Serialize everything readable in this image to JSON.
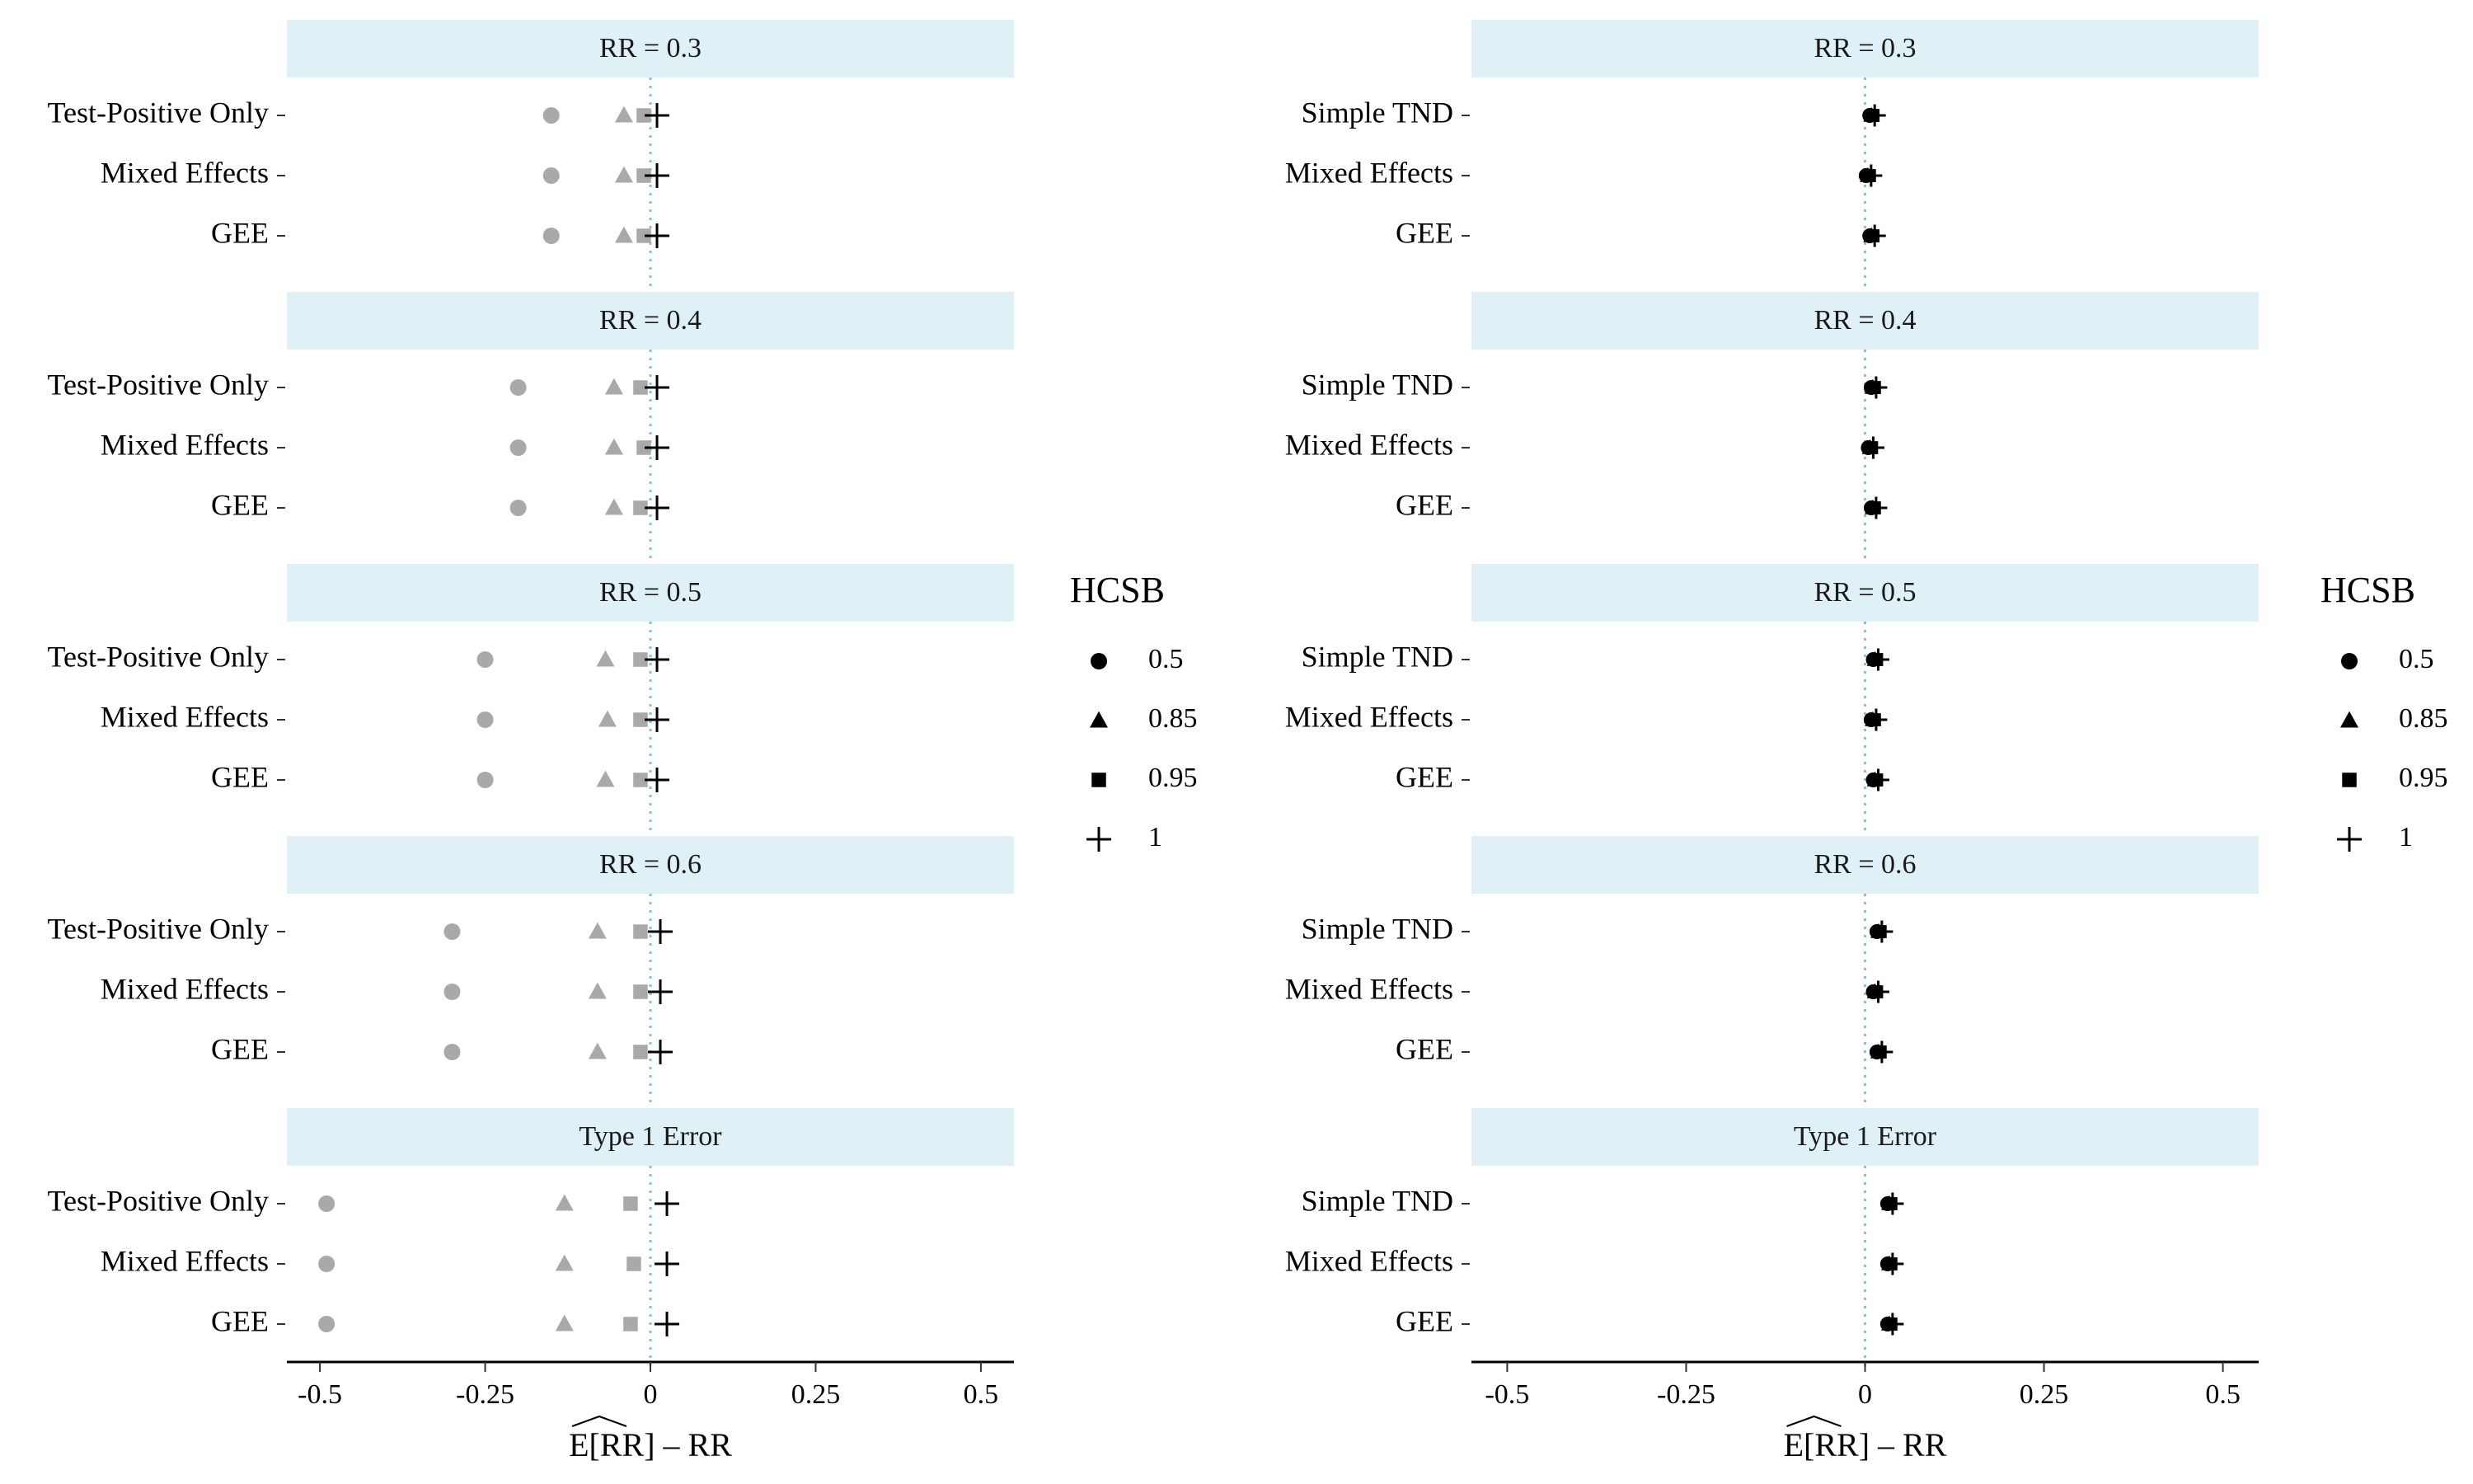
{
  "chart_data": [
    {
      "type": "scatter",
      "panel": "left",
      "facets": [
        "RR = 0.3",
        "RR = 0.4",
        "RR = 0.5",
        "RR = 0.6",
        "Type 1 Error"
      ],
      "categories": [
        "Test-Positive Only",
        "Mixed Effects",
        "GEE"
      ],
      "xlabel": "E[RR] – RR",
      "xlim": [
        -0.55,
        0.55
      ],
      "x_ticks": [
        -0.5,
        -0.25,
        0,
        0.25,
        0.5
      ],
      "x_tick_labels": [
        "-0.5",
        "-0.25",
        "0",
        "0.25",
        "0.5"
      ],
      "reference_line": 0,
      "point_color": "#a9a9a9",
      "cross_color": "#000000",
      "series": [
        {
          "name": "0.5",
          "shape": "circle",
          "values": [
            [
              -0.15,
              -0.15,
              -0.15
            ],
            [
              -0.2,
              -0.2,
              -0.2
            ],
            [
              -0.25,
              -0.25,
              -0.25
            ],
            [
              -0.3,
              -0.3,
              -0.3
            ],
            [
              -0.49,
              -0.49,
              -0.49
            ]
          ]
        },
        {
          "name": "0.85",
          "shape": "triangle",
          "values": [
            [
              -0.04,
              -0.04,
              -0.04
            ],
            [
              -0.055,
              -0.055,
              -0.055
            ],
            [
              -0.068,
              -0.065,
              -0.068
            ],
            [
              -0.08,
              -0.08,
              -0.08
            ],
            [
              -0.13,
              -0.13,
              -0.13
            ]
          ]
        },
        {
          "name": "0.95",
          "shape": "square",
          "values": [
            [
              -0.01,
              -0.01,
              -0.01
            ],
            [
              -0.015,
              -0.01,
              -0.015
            ],
            [
              -0.015,
              -0.015,
              -0.015
            ],
            [
              -0.015,
              -0.015,
              -0.015
            ],
            [
              -0.03,
              -0.025,
              -0.03
            ]
          ]
        },
        {
          "name": "1",
          "shape": "cross",
          "values": [
            [
              0.01,
              0.01,
              0.01
            ],
            [
              0.01,
              0.01,
              0.01
            ],
            [
              0.01,
              0.01,
              0.01
            ],
            [
              0.015,
              0.015,
              0.015
            ],
            [
              0.025,
              0.025,
              0.025
            ]
          ]
        }
      ]
    },
    {
      "type": "scatter",
      "panel": "right",
      "facets": [
        "RR = 0.3",
        "RR = 0.4",
        "RR = 0.5",
        "RR = 0.6",
        "Type 1 Error"
      ],
      "categories": [
        "Simple TND",
        "Mixed Effects",
        "GEE"
      ],
      "xlabel": "E[RR] – RR",
      "xlim": [
        -0.55,
        0.55
      ],
      "x_ticks": [
        -0.5,
        -0.25,
        0,
        0.25,
        0.5
      ],
      "x_tick_labels": [
        "-0.5",
        "-0.25",
        "0",
        "0.25",
        "0.5"
      ],
      "reference_line": 0,
      "point_color": "#000000",
      "cross_color": "#000000",
      "series": [
        {
          "name": "0.5",
          "shape": "circle",
          "values": [
            [
              0.01,
              0.005,
              0.01
            ],
            [
              0.012,
              0.008,
              0.012
            ],
            [
              0.015,
              0.012,
              0.015
            ],
            [
              0.02,
              0.015,
              0.02
            ],
            [
              0.035,
              0.035,
              0.035
            ]
          ]
        },
        {
          "name": "0.85",
          "shape": "triangle",
          "values": [
            [
              0.01,
              0.005,
              0.01
            ],
            [
              0.012,
              0.008,
              0.012
            ],
            [
              0.015,
              0.012,
              0.015
            ],
            [
              0.02,
              0.015,
              0.02
            ],
            [
              0.035,
              0.035,
              0.035
            ]
          ]
        },
        {
          "name": "0.95",
          "shape": "square",
          "values": [
            [
              0.01,
              0.005,
              0.01
            ],
            [
              0.012,
              0.008,
              0.012
            ],
            [
              0.015,
              0.012,
              0.015
            ],
            [
              0.02,
              0.015,
              0.02
            ],
            [
              0.035,
              0.035,
              0.035
            ]
          ]
        },
        {
          "name": "1",
          "shape": "cross",
          "values": [
            [
              0.01,
              0.005,
              0.01
            ],
            [
              0.012,
              0.008,
              0.012
            ],
            [
              0.015,
              0.012,
              0.015
            ],
            [
              0.02,
              0.015,
              0.02
            ],
            [
              0.035,
              0.035,
              0.035
            ]
          ]
        }
      ]
    }
  ],
  "legend": {
    "title": "HCSB",
    "items": [
      {
        "label": "0.5",
        "shape": "circle"
      },
      {
        "label": "0.85",
        "shape": "triangle"
      },
      {
        "label": "0.95",
        "shape": "square"
      },
      {
        "label": "1",
        "shape": "cross"
      }
    ]
  },
  "colors": {
    "strip_background": "#dff0f6",
    "reference_line": "#7ec3e0",
    "grey_points": "#a9a9a9",
    "black_points": "#000000"
  }
}
